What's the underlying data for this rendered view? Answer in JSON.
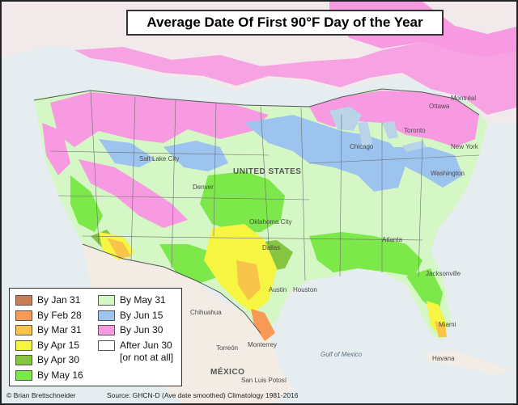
{
  "title": "Average Date Of First 90°F Day of the Year",
  "legend": {
    "items": [
      {
        "label": "By Jan 31",
        "color": "#c87c57"
      },
      {
        "label": "By Feb 28",
        "color": "#f89a55"
      },
      {
        "label": "By Mar 31",
        "color": "#f8c44a"
      },
      {
        "label": "By Apr 15",
        "color": "#f5f542"
      },
      {
        "label": "By Apr 30",
        "color": "#86c542"
      },
      {
        "label": "By May 16",
        "color": "#7ce84a"
      },
      {
        "label": "By May 31",
        "color": "#d4f7c5"
      },
      {
        "label": "By Jun 15",
        "color": "#9dc3ef"
      },
      {
        "label": "By Jun 30",
        "color": "#f79ae2"
      },
      {
        "label": "After Jun 30\n[or not at all]",
        "color": "#ffffff"
      }
    ]
  },
  "footer": {
    "credit": "© Brian Brettschneider",
    "source": "Source: GHCN-D (Ave date smoothed) Climatology 1981-2016"
  },
  "map_labels": {
    "united_states": "UNITED STATES",
    "mexico": "MÉXICO",
    "gulf_of_mexico": "Gulf of Mexico",
    "cities": [
      "Chihuahua",
      "Monterrey",
      "Torreón",
      "San Luis Potosí",
      "Havana",
      "Jacksonville",
      "Salt Lake City",
      "Denver",
      "Oklahoma City",
      "Dallas",
      "Austin",
      "Houston",
      "Miami",
      "Atlanta",
      "Chicago",
      "Toronto",
      "Ottawa",
      "Montréal",
      "New York",
      "Washington"
    ]
  }
}
